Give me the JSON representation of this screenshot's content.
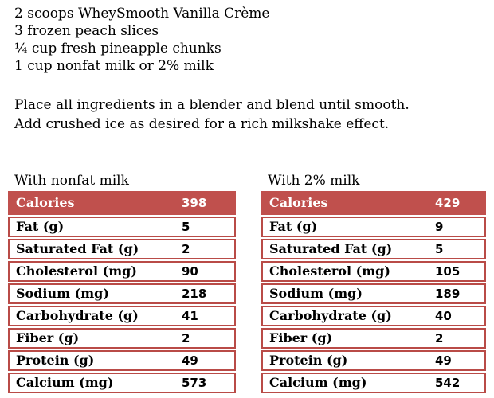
{
  "colors": {
    "accent_red": "#C0504D",
    "border_red": "#B94B47",
    "header_text": "#ffffff",
    "body_text": "#000000",
    "page_background": "#ffffff"
  },
  "ingredients": [
    "2 scoops WheySmooth Vanilla Crème",
    "3 frozen peach slices",
    "¼ cup fresh pineapple chunks",
    "1 cup nonfat milk or 2% milk"
  ],
  "instructions": [
    "Place all ingredients in a blender and blend until smooth.",
    "Add crushed ice as desired for a rich milkshake effect."
  ],
  "tables": [
    {
      "title": "With nonfat milk",
      "rows": [
        {
          "label": "Calories",
          "value": "398",
          "header": true
        },
        {
          "label": "Fat (g)",
          "value": "5"
        },
        {
          "label": "Saturated Fat (g)",
          "value": "2"
        },
        {
          "label": "Cholesterol (mg)",
          "value": "90"
        },
        {
          "label": "Sodium (mg)",
          "value": "218"
        },
        {
          "label": "Carbohydrate (g)",
          "value": "41"
        },
        {
          "label": "Fiber (g)",
          "value": "2"
        },
        {
          "label": "Protein (g)",
          "value": "49"
        },
        {
          "label": "Calcium (mg)",
          "value": "573"
        }
      ]
    },
    {
      "title": "With 2% milk",
      "rows": [
        {
          "label": "Calories",
          "value": "429",
          "header": true
        },
        {
          "label": "Fat (g)",
          "value": "9"
        },
        {
          "label": "Saturated Fat (g)",
          "value": "5"
        },
        {
          "label": "Cholesterol (mg)",
          "value": "105"
        },
        {
          "label": "Sodium (mg)",
          "value": "189"
        },
        {
          "label": "Carbohydrate (g)",
          "value": "40"
        },
        {
          "label": "Fiber (g)",
          "value": "2"
        },
        {
          "label": "Protein (g)",
          "value": "49"
        },
        {
          "label": "Calcium (mg)",
          "value": "542"
        }
      ]
    }
  ]
}
